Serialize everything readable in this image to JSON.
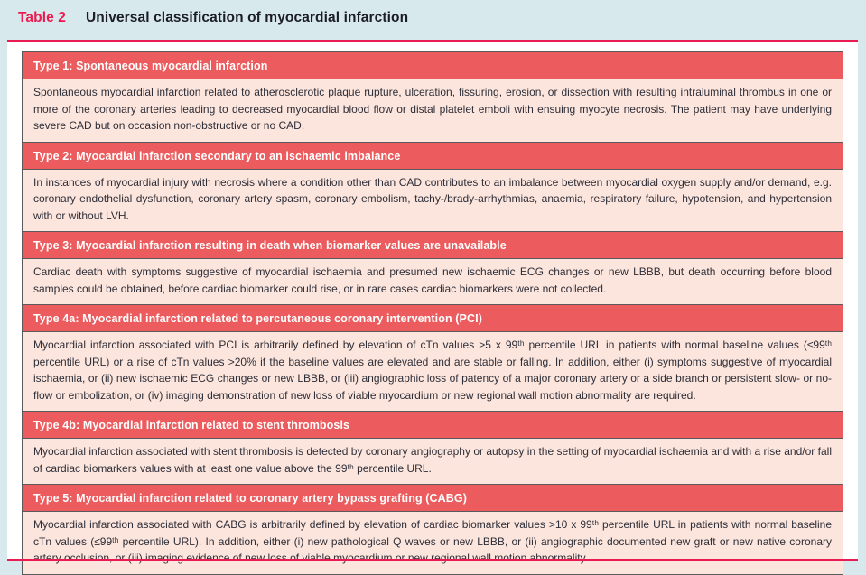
{
  "caption": {
    "label": "Table 2",
    "title": "Universal classification of myocardial infarction"
  },
  "sections": [
    {
      "header": "Type 1: Spontaneous myocardial infarction",
      "body": "Spontaneous myocardial infarction related to atherosclerotic plaque rupture, ulceration, fissuring, erosion, or dissection with resulting intraluminal thrombus in one or more of the coronary arteries leading to decreased myocardial blood flow or distal platelet emboli with ensuing myocyte necrosis. The patient may have underlying severe CAD but on occasion non-obstructive or no CAD."
    },
    {
      "header": "Type 2: Myocardial infarction secondary to an ischaemic imbalance",
      "body": "In instances of myocardial injury with necrosis where a condition other than CAD contributes to an imbalance between myocardial oxygen supply and/or demand, e.g. coronary endothelial dysfunction, coronary artery spasm, coronary embolism, tachy-/brady-arrhythmias, anaemia, respiratory failure, hypotension, and hypertension with or without LVH."
    },
    {
      "header": "Type 3: Myocardial infarction resulting in death when biomarker values are unavailable",
      "body": "Cardiac death with symptoms suggestive of myocardial ischaemia and presumed new ischaemic ECG changes or new LBBB, but death occurring before blood samples could be obtained, before cardiac biomarker could rise, or in rare cases cardiac biomarkers were not collected."
    },
    {
      "header": "Type 4a: Myocardial infarction related to percutaneous coronary intervention (PCI)",
      "body": "Myocardial infarction associated with PCI is arbitrarily defined by elevation of cTn values >5 x 99ᵗʰ percentile URL in patients with normal baseline values (≤99ᵗʰ percentile URL) or a rise of cTn values >20% if the baseline values are elevated and are stable or falling. In addition, either (i) symptoms suggestive of myocardial ischaemia, or (ii) new ischaemic ECG changes or new LBBB, or (iii) angiographic loss of patency of a major coronary artery or a side branch or persistent slow- or no-flow or embolization, or (iv) imaging demonstration of new loss of viable myocardium or new regional wall motion abnormality are required."
    },
    {
      "header": "Type 4b: Myocardial infarction related to stent thrombosis",
      "body": "Myocardial infarction associated with stent thrombosis is detected by coronary angiography or autopsy in the setting of myocardial ischaemia and with a rise and/or fall of cardiac biomarkers values with at least one value above the 99ᵗʰ percentile URL."
    },
    {
      "header": "Type 5: Myocardial infarction related to coronary artery bypass grafting (CABG)",
      "body": "Myocardial infarction associated with CABG is arbitrarily defined by elevation of cardiac biomarker values >10 x 99ᵗʰ percentile URL in patients with normal baseline cTn values (≤99ᵗʰ percentile URL). In addition, either (i) new pathological Q waves or new LBBB, or (ii) angiographic documented new graft or new native coronary artery occlusion, or (iii) imaging evidence of new loss of viable myocardium or new regional wall motion abnormality."
    }
  ],
  "colors": {
    "page_blue": "#d7e9ec",
    "rule_pink": "#ea1a52",
    "label_red": "#ed1a50",
    "header_red": "#ec5b5d",
    "body_pink": "#fbe5dd",
    "border_gray": "#5a5a5c",
    "title_ink": "#1c1c28",
    "body_ink": "#2e2e38"
  }
}
